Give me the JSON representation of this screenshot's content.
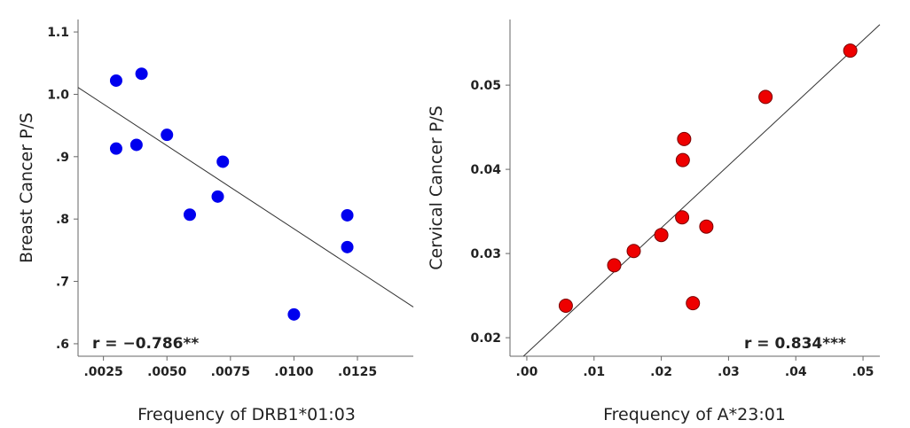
{
  "chart_data": [
    {
      "type": "scatter",
      "xlabel": "Frequency of DRB1*01:03",
      "ylabel": "Breast Cancer  P/S",
      "xlim": [
        0.0015,
        0.0147
      ],
      "ylim": [
        0.58,
        1.12
      ],
      "xticks": [
        0.0025,
        0.005,
        0.0075,
        0.01,
        0.0125
      ],
      "xtick_labels": [
        ".0025",
        ".0050",
        ".0075",
        ".0100",
        ".0125"
      ],
      "yticks": [
        0.6,
        0.7,
        0.8,
        0.9,
        1.0,
        1.1
      ],
      "ytick_labels": [
        ".6",
        ".7",
        ".8",
        ".9",
        "1.0",
        "1.1"
      ],
      "points": [
        {
          "x": 0.003,
          "y": 1.022
        },
        {
          "x": 0.004,
          "y": 1.033
        },
        {
          "x": 0.003,
          "y": 0.913
        },
        {
          "x": 0.0038,
          "y": 0.919
        },
        {
          "x": 0.005,
          "y": 0.935
        },
        {
          "x": 0.0072,
          "y": 0.892
        },
        {
          "x": 0.007,
          "y": 0.836
        },
        {
          "x": 0.0059,
          "y": 0.807
        },
        {
          "x": 0.0121,
          "y": 0.806
        },
        {
          "x": 0.0121,
          "y": 0.755
        },
        {
          "x": 0.01,
          "y": 0.647
        }
      ],
      "fit_line": {
        "x": [
          0.0015,
          0.0147
        ],
        "y": [
          1.011,
          0.659
        ]
      },
      "annotation": "r = −0.786**",
      "marker_color": "#0000ee",
      "marker_edge": "#0000ee"
    },
    {
      "type": "scatter",
      "xlabel": "Frequency of A*23:01",
      "ylabel": "Cervical Cancer  P/S",
      "xlim": [
        -0.0025,
        0.0525
      ],
      "ylim": [
        0.0178,
        0.0578
      ],
      "xticks": [
        0,
        0.01,
        0.02,
        0.03,
        0.04,
        0.05
      ],
      "xtick_labels": [
        ".00",
        ".01",
        ".02",
        ".03",
        ".04",
        ".05"
      ],
      "yticks": [
        0.02,
        0.03,
        0.04,
        0.05
      ],
      "ytick_labels": [
        "0.02",
        "0.03",
        "0.04",
        "0.05"
      ],
      "points": [
        {
          "x": 0.0058,
          "y": 0.0238
        },
        {
          "x": 0.013,
          "y": 0.0286
        },
        {
          "x": 0.0159,
          "y": 0.0303
        },
        {
          "x": 0.02,
          "y": 0.0322
        },
        {
          "x": 0.0231,
          "y": 0.0343
        },
        {
          "x": 0.0232,
          "y": 0.0411
        },
        {
          "x": 0.0234,
          "y": 0.0436
        },
        {
          "x": 0.0267,
          "y": 0.0332
        },
        {
          "x": 0.0247,
          "y": 0.0241
        },
        {
          "x": 0.0355,
          "y": 0.0486
        },
        {
          "x": 0.0481,
          "y": 0.0541
        }
      ],
      "fit_line": {
        "x": [
          -0.0005,
          0.0525
        ],
        "y": [
          0.0178,
          0.0572
        ]
      },
      "annotation": "r = 0.834***",
      "marker_color": "#ee0000",
      "marker_edge": "#7a0000"
    }
  ]
}
